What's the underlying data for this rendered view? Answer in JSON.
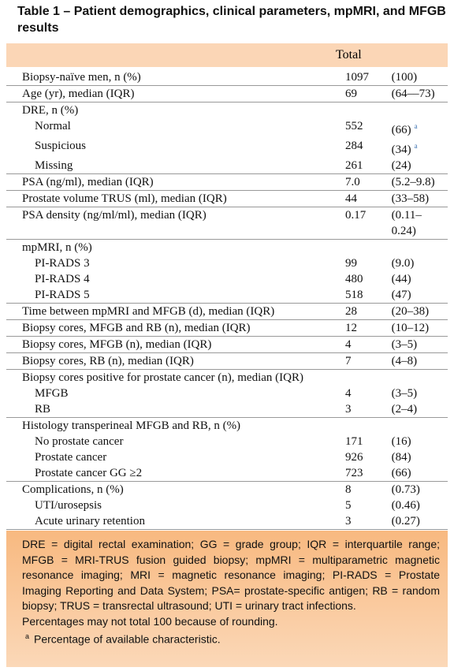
{
  "title": "Table 1 – Patient demographics, clinical parameters, mpMRI, and MFGB results",
  "table": {
    "header": "Total",
    "groups": [
      {
        "label": "Biopsy-naïve men, n (%)",
        "total": "1097",
        "range": "(100)"
      },
      {
        "label": "Age (yr), median (IQR)",
        "total": "69",
        "range": "(64––73)"
      },
      {
        "label": "DRE, n (%)",
        "items": [
          {
            "label": "Normal",
            "total": "552",
            "range": "(66)",
            "note": "a"
          },
          {
            "label": "Suspicious",
            "total": "284",
            "range": "(34)",
            "note": "a"
          },
          {
            "label": "Missing",
            "total": "261",
            "range": "(24)"
          }
        ]
      },
      {
        "label": "PSA (ng/ml), median (IQR)",
        "total": "7.0",
        "range": "(5.2–9.8)"
      },
      {
        "label": "Prostate volume TRUS (ml), median (IQR)",
        "total": "44",
        "range": "(33–58)"
      },
      {
        "label": "PSA density (ng/ml/ml), median (IQR)",
        "total": "0.17",
        "range": "(0.11–0.24)"
      },
      {
        "label": "mpMRI, n (%)",
        "items": [
          {
            "label": "PI-RADS 3",
            "total": "99",
            "range": "(9.0)"
          },
          {
            "label": "PI-RADS 4",
            "total": "480",
            "range": "(44)"
          },
          {
            "label": "PI-RADS 5",
            "total": "518",
            "range": "(47)"
          }
        ]
      },
      {
        "label": "Time between mpMRI and MFGB (d), median (IQR)",
        "total": "28",
        "range": "(20–38)"
      },
      {
        "label": "Biopsy cores, MFGB and RB (n), median (IQR)",
        "total": "12",
        "range": "(10–12)"
      },
      {
        "label": "Biopsy cores, MFGB (n), median (IQR)",
        "total": "4",
        "range": "(3–5)"
      },
      {
        "label": "Biopsy cores, RB (n), median (IQR)",
        "total": "7",
        "range": "(4–8)"
      },
      {
        "label": "Biopsy cores positive for prostate cancer (n), median (IQR)",
        "items": [
          {
            "label": "MFGB",
            "total": "4",
            "range": "(3–5)"
          },
          {
            "label": "RB",
            "total": "3",
            "range": "(2–4)"
          }
        ]
      },
      {
        "label": "Histology transperineal MFGB and RB, n (%)",
        "items": [
          {
            "label": "No prostate cancer",
            "total": "171",
            "range": "(16)"
          },
          {
            "label": "Prostate cancer",
            "total": "926",
            "range": "(84)"
          },
          {
            "label": "Prostate cancer GG ≥2",
            "total": "723",
            "range": "(66)"
          }
        ]
      },
      {
        "label": "Complications, n (%)",
        "total": "8",
        "range": "(0.73)",
        "items": [
          {
            "label": "UTI/urosepsis",
            "total": "5",
            "range": "(0.46)"
          },
          {
            "label": "Acute urinary retention",
            "total": "3",
            "range": "(0.27)"
          }
        ]
      }
    ]
  },
  "footer": {
    "abbreviations": "DRE = digital rectal examination; GG = grade group; IQR = interquartile range; MFGB = MRI-TRUS fusion guided biopsy; mpMRI = multiparametric magnetic resonance imaging; MRI = magnetic resonance imaging; PI-RADS = Prostate Imaging Reporting and Data System; PSA= prostate-specific antigen; RB = random biopsy; TRUS = transrectal ultrasound; UTI = urinary tract infections.",
    "rounding": "Percentages may not total 100 because of rounding.",
    "note_mark": "a",
    "note": "Percentage of available characteristic."
  }
}
